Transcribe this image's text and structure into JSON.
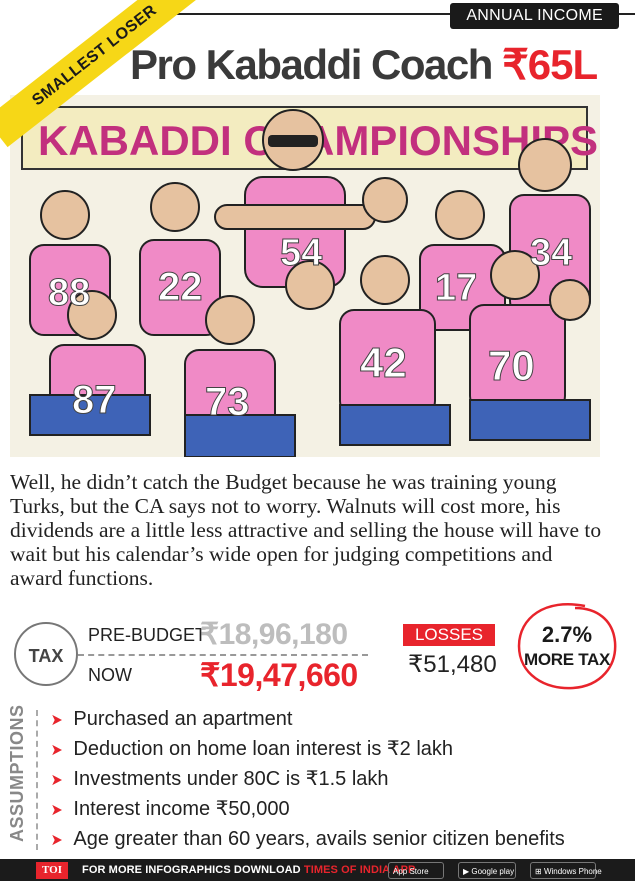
{
  "header": {
    "tag": "ANNUAL INCOME",
    "ribbon": "SMALLEST LOSER",
    "title": "Pro Kabaddi Coach",
    "amount": "₹65L"
  },
  "illustration": {
    "banner_text": "KABADDI CHAMPIONSHIPS",
    "jersey_numbers": [
      "88",
      "22",
      "87",
      "73",
      "42",
      "70",
      "34",
      "54",
      "17"
    ]
  },
  "story": "Well, he didn’t catch the Budget because he was training young Turks, but the CA says not to worry. Walnuts will cost more, his dividends are a little less attractive and selling the house will have to wait but his calendar’s wide open for judging competitions and award functions.",
  "tax": {
    "label": "TAX",
    "pre_budget_label": "PRE-BUDGET",
    "pre_budget_value": "₹18,96,180",
    "now_label": "NOW",
    "now_value": "₹19,47,660",
    "losses_label": "LOSSES",
    "losses_value": "₹51,480",
    "more_tax_pct": "2.7%",
    "more_tax_label": "MORE TAX"
  },
  "assumptions": {
    "label": "ASSUMPTIONS",
    "items": [
      "Purchased an apartment",
      "Deduction on home loan interest is ₹2 lakh",
      "Investments under 80C is ₹1.5 lakh",
      "Interest income ₹50,000",
      "Age greater than 60 years, avails senior citizen benefits"
    ]
  },
  "footer": {
    "brand": "TOI",
    "text_prefix": "FOR MORE  INFOGRAPHICS DOWNLOAD",
    "text_app": "TIMES OF INDIA APP",
    "app_store": "App Store",
    "google_play": "Google play",
    "windows_phone": "Windows Phone"
  },
  "colors": {
    "accent_red": "#e8242c",
    "ribbon_yellow": "#f6d717",
    "jersey_pink": "#f08ac6",
    "shorts_blue": "#3e63b7"
  }
}
